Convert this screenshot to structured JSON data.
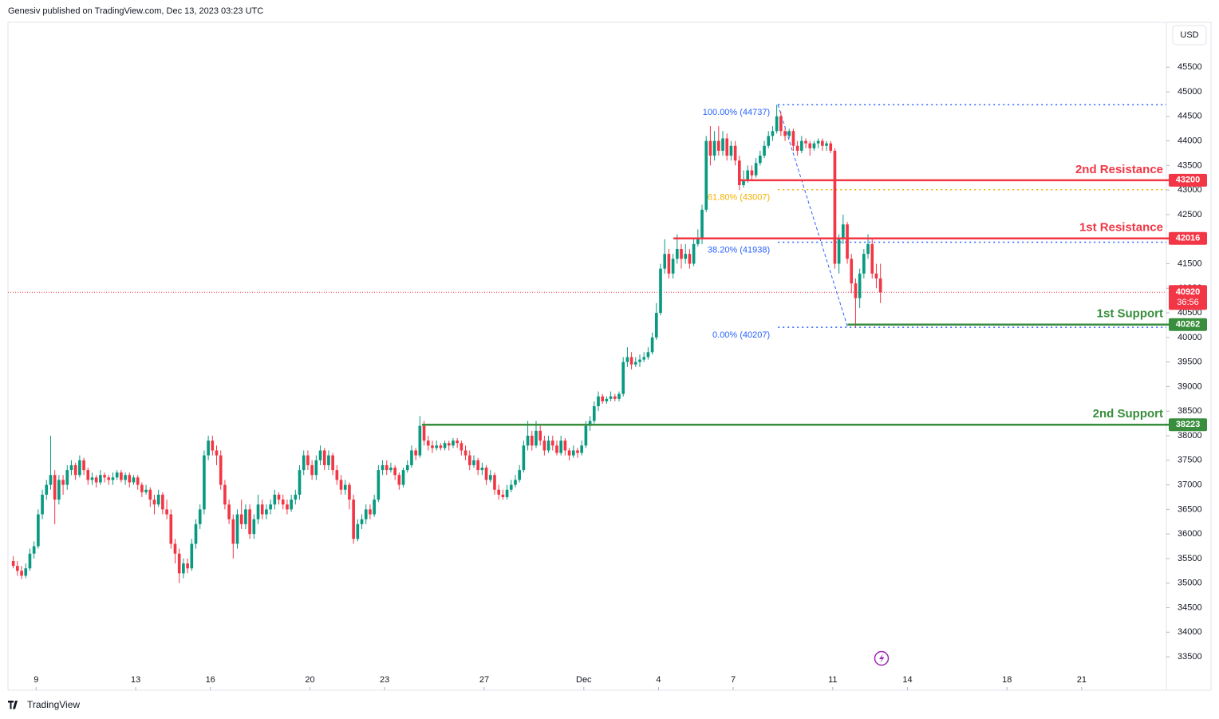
{
  "chart_data": {
    "type": "candlestick",
    "header": "Genesiv published on TradingView.com, Dec 13, 2023 03:23 UTC",
    "currency": "USD",
    "footer": "TradingView",
    "up_color": "#089981",
    "down_color": "#f23645",
    "xlim": [
      -0.13,
      46.4
    ],
    "xticks": [
      {
        "value": 1,
        "label": "9"
      },
      {
        "value": 5,
        "label": "13"
      },
      {
        "value": 8,
        "label": "16"
      },
      {
        "value": 12,
        "label": "20"
      },
      {
        "value": 15,
        "label": "23"
      },
      {
        "value": 19,
        "label": "27"
      },
      {
        "value": 23,
        "label": "Dec"
      },
      {
        "value": 26,
        "label": "4"
      },
      {
        "value": 29,
        "label": "7"
      },
      {
        "value": 33,
        "label": "11"
      },
      {
        "value": 36,
        "label": "14"
      },
      {
        "value": 40,
        "label": "18"
      },
      {
        "value": 43,
        "label": "21"
      }
    ],
    "ylim": [
      32819,
      46413
    ],
    "yticks": [
      33500,
      34000,
      34500,
      35000,
      35500,
      36000,
      36500,
      37000,
      37500,
      38000,
      38500,
      39000,
      39500,
      40000,
      40500,
      41000,
      41500,
      42000,
      42500,
      43000,
      43500,
      44000,
      44500,
      45000,
      45500
    ],
    "candles": [
      [
        35450,
        35550,
        35300,
        35350
      ],
      [
        35350,
        35450,
        35150,
        35250
      ],
      [
        35250,
        35350,
        35080,
        35150
      ],
      [
        35150,
        35400,
        35100,
        35300
      ],
      [
        35300,
        35700,
        35250,
        35600
      ],
      [
        35600,
        35850,
        35500,
        35750
      ],
      [
        35750,
        36500,
        35700,
        36400
      ],
      [
        36400,
        36900,
        36300,
        36800
      ],
      [
        36800,
        37100,
        36700,
        37000
      ],
      [
        37000,
        38000,
        36900,
        37200
      ],
      [
        37200,
        37300,
        36200,
        36700
      ],
      [
        36700,
        37200,
        36600,
        37100
      ],
      [
        37100,
        37200,
        36800,
        37000
      ],
      [
        37000,
        37400,
        36900,
        37300
      ],
      [
        37300,
        37500,
        37200,
        37400
      ],
      [
        37400,
        37450,
        37100,
        37200
      ],
      [
        37200,
        37600,
        37150,
        37500
      ],
      [
        37500,
        37550,
        37200,
        37300
      ],
      [
        37300,
        37350,
        37000,
        37100
      ],
      [
        37100,
        37250,
        37000,
        37150
      ],
      [
        37150,
        37200,
        36950,
        37050
      ],
      [
        37050,
        37300,
        37000,
        37200
      ],
      [
        37200,
        37250,
        37050,
        37150
      ],
      [
        37150,
        37200,
        37000,
        37100
      ],
      [
        37100,
        37250,
        37000,
        37150
      ],
      [
        37150,
        37300,
        37100,
        37250
      ],
      [
        37250,
        37300,
        37050,
        37100
      ],
      [
        37100,
        37250,
        37000,
        37200
      ],
      [
        37200,
        37250,
        36950,
        37050
      ],
      [
        37050,
        37200,
        37000,
        37150
      ],
      [
        37150,
        37200,
        36900,
        37000
      ],
      [
        37000,
        37050,
        36750,
        36850
      ],
      [
        36850,
        37000,
        36800,
        36900
      ],
      [
        36900,
        36950,
        36550,
        36700
      ],
      [
        36700,
        36800,
        36400,
        36600
      ],
      [
        36600,
        36900,
        36550,
        36800
      ],
      [
        36800,
        36850,
        36400,
        36500
      ],
      [
        36500,
        36700,
        36300,
        36400
      ],
      [
        36400,
        36500,
        35700,
        35800
      ],
      [
        35800,
        35900,
        35400,
        35600
      ],
      [
        35600,
        35700,
        35000,
        35200
      ],
      [
        35200,
        35500,
        35100,
        35400
      ],
      [
        35400,
        35500,
        35200,
        35300
      ],
      [
        35300,
        35900,
        35250,
        35800
      ],
      [
        35800,
        36300,
        35700,
        36200
      ],
      [
        36200,
        36600,
        36100,
        36500
      ],
      [
        36500,
        37700,
        36400,
        37600
      ],
      [
        37600,
        38000,
        37500,
        37900
      ],
      [
        37900,
        38000,
        37600,
        37700
      ],
      [
        37700,
        37800,
        37400,
        37600
      ],
      [
        37600,
        37700,
        36900,
        37000
      ],
      [
        37000,
        37100,
        36500,
        36600
      ],
      [
        36600,
        36700,
        36200,
        36300
      ],
      [
        36300,
        36400,
        35500,
        35800
      ],
      [
        35800,
        36500,
        35700,
        36400
      ],
      [
        36400,
        36700,
        36100,
        36200
      ],
      [
        36200,
        36600,
        36100,
        36500
      ],
      [
        36500,
        36600,
        35900,
        36000
      ],
      [
        36000,
        36400,
        35900,
        36300
      ],
      [
        36300,
        36800,
        36200,
        36600
      ],
      [
        36600,
        36700,
        36300,
        36400
      ],
      [
        36400,
        36600,
        36300,
        36500
      ],
      [
        36500,
        36700,
        36400,
        36600
      ],
      [
        36600,
        36900,
        36500,
        36800
      ],
      [
        36800,
        36850,
        36600,
        36700
      ],
      [
        36700,
        36800,
        36500,
        36600
      ],
      [
        36600,
        36700,
        36400,
        36500
      ],
      [
        36500,
        36800,
        36450,
        36700
      ],
      [
        36700,
        36900,
        36600,
        36800
      ],
      [
        36800,
        37400,
        36700,
        37300
      ],
      [
        37300,
        37700,
        37200,
        37600
      ],
      [
        37600,
        37700,
        37300,
        37400
      ],
      [
        37400,
        37500,
        37100,
        37200
      ],
      [
        37200,
        37600,
        37100,
        37500
      ],
      [
        37500,
        37800,
        37400,
        37700
      ],
      [
        37700,
        37750,
        37300,
        37400
      ],
      [
        37400,
        37700,
        37300,
        37600
      ],
      [
        37600,
        37650,
        37200,
        37300
      ],
      [
        37300,
        37400,
        37000,
        37100
      ],
      [
        37100,
        37200,
        36800,
        36900
      ],
      [
        36900,
        37100,
        36800,
        37000
      ],
      [
        37000,
        37050,
        36500,
        36700
      ],
      [
        36700,
        36800,
        35800,
        35900
      ],
      [
        35900,
        36300,
        35850,
        36200
      ],
      [
        36200,
        36400,
        36100,
        36300
      ],
      [
        36300,
        36600,
        36200,
        36500
      ],
      [
        36500,
        36600,
        36300,
        36400
      ],
      [
        36400,
        36800,
        36350,
        36700
      ],
      [
        36700,
        37400,
        36650,
        37300
      ],
      [
        37300,
        37500,
        37200,
        37400
      ],
      [
        37400,
        37500,
        37200,
        37300
      ],
      [
        37300,
        37450,
        37250,
        37350
      ],
      [
        37350,
        37400,
        37100,
        37200
      ],
      [
        37200,
        37250,
        36900,
        37000
      ],
      [
        37000,
        37350,
        36950,
        37300
      ],
      [
        37300,
        37500,
        37250,
        37400
      ],
      [
        37400,
        37800,
        37350,
        37700
      ],
      [
        37700,
        37750,
        37500,
        37600
      ],
      [
        37600,
        38400,
        37550,
        38200
      ],
      [
        38200,
        38300,
        37800,
        37900
      ],
      [
        37900,
        38000,
        37700,
        37800
      ],
      [
        37800,
        37900,
        37650,
        37750
      ],
      [
        37750,
        37900,
        37700,
        37800
      ],
      [
        37800,
        37850,
        37700,
        37750
      ],
      [
        37750,
        37900,
        37700,
        37850
      ],
      [
        37850,
        37900,
        37700,
        37800
      ],
      [
        37800,
        37950,
        37750,
        37900
      ],
      [
        37900,
        37950,
        37750,
        37850
      ],
      [
        37850,
        37900,
        37600,
        37700
      ],
      [
        37700,
        37800,
        37500,
        37600
      ],
      [
        37600,
        37700,
        37300,
        37400
      ],
      [
        37400,
        37600,
        37350,
        37500
      ],
      [
        37500,
        37550,
        37200,
        37300
      ],
      [
        37300,
        37450,
        37200,
        37350
      ],
      [
        37350,
        37400,
        37000,
        37100
      ],
      [
        37100,
        37300,
        37050,
        37200
      ],
      [
        37200,
        37250,
        36800,
        36900
      ],
      [
        36900,
        37000,
        36700,
        36800
      ],
      [
        36800,
        36900,
        36700,
        36750
      ],
      [
        36750,
        37000,
        36700,
        36900
      ],
      [
        36900,
        37100,
        36850,
        37000
      ],
      [
        37000,
        37200,
        36950,
        37100
      ],
      [
        37100,
        37400,
        37050,
        37300
      ],
      [
        37300,
        37900,
        37250,
        37800
      ],
      [
        37800,
        38300,
        37700,
        38000
      ],
      [
        38000,
        38100,
        37700,
        37800
      ],
      [
        37800,
        38300,
        37750,
        38100
      ],
      [
        38100,
        38200,
        37800,
        37900
      ],
      [
        37900,
        38000,
        37600,
        37700
      ],
      [
        37700,
        38000,
        37650,
        37900
      ],
      [
        37900,
        38000,
        37700,
        37800
      ],
      [
        37800,
        37900,
        37600,
        37650
      ],
      [
        37650,
        38000,
        37600,
        37900
      ],
      [
        37900,
        37950,
        37600,
        37700
      ],
      [
        37700,
        37750,
        37500,
        37600
      ],
      [
        37600,
        37800,
        37550,
        37700
      ],
      [
        37700,
        37750,
        37550,
        37650
      ],
      [
        37650,
        37900,
        37600,
        37800
      ],
      [
        37800,
        38300,
        37750,
        38200
      ],
      [
        38200,
        38400,
        38100,
        38300
      ],
      [
        38300,
        38700,
        38250,
        38600
      ],
      [
        38600,
        38900,
        38500,
        38800
      ],
      [
        38800,
        38850,
        38650,
        38700
      ],
      [
        38700,
        38800,
        38650,
        38750
      ],
      [
        38750,
        38900,
        38700,
        38800
      ],
      [
        38800,
        38850,
        38700,
        38750
      ],
      [
        38750,
        38900,
        38700,
        38850
      ],
      [
        38850,
        39600,
        38800,
        39500
      ],
      [
        39500,
        39800,
        39400,
        39600
      ],
      [
        39600,
        39700,
        39350,
        39450
      ],
      [
        39450,
        39600,
        39400,
        39500
      ],
      [
        39500,
        39650,
        39400,
        39550
      ],
      [
        39550,
        39700,
        39500,
        39600
      ],
      [
        39600,
        39800,
        39550,
        39700
      ],
      [
        39700,
        40100,
        39650,
        40000
      ],
      [
        40000,
        40700,
        39950,
        40500
      ],
      [
        40500,
        41500,
        40450,
        41400
      ],
      [
        41400,
        42000,
        41300,
        41700
      ],
      [
        41700,
        41800,
        41200,
        41300
      ],
      [
        41300,
        41700,
        41200,
        41600
      ],
      [
        41600,
        42100,
        41500,
        41800
      ],
      [
        41800,
        41900,
        41400,
        41600
      ],
      [
        41600,
        41900,
        41500,
        41700
      ],
      [
        41700,
        41800,
        41400,
        41500
      ],
      [
        41500,
        42000,
        41450,
        41900
      ],
      [
        41900,
        42200,
        41850,
        42000
      ],
      [
        42000,
        42700,
        41900,
        42600
      ],
      [
        42600,
        44100,
        42550,
        44000
      ],
      [
        44000,
        44300,
        43500,
        43700
      ],
      [
        43700,
        44200,
        43600,
        44000
      ],
      [
        44000,
        44300,
        43700,
        43800
      ],
      [
        43800,
        44200,
        43700,
        44050
      ],
      [
        44050,
        44150,
        43600,
        43700
      ],
      [
        43700,
        44000,
        43600,
        43900
      ],
      [
        43900,
        44000,
        43500,
        43600
      ],
      [
        43600,
        43700,
        43000,
        43100
      ],
      [
        43100,
        43400,
        43050,
        43200
      ],
      [
        43200,
        43500,
        43150,
        43400
      ],
      [
        43400,
        43500,
        43200,
        43300
      ],
      [
        43300,
        43650,
        43250,
        43550
      ],
      [
        43550,
        43800,
        43500,
        43700
      ],
      [
        43700,
        44000,
        43650,
        43900
      ],
      [
        43900,
        44200,
        43850,
        44100
      ],
      [
        44100,
        44300,
        44000,
        44200
      ],
      [
        44200,
        44737,
        44150,
        44500
      ],
      [
        44500,
        44600,
        44100,
        44200
      ],
      [
        44200,
        44250,
        44000,
        44100
      ],
      [
        44100,
        44250,
        44050,
        44200
      ],
      [
        44200,
        44250,
        43800,
        43900
      ],
      [
        43900,
        44000,
        43700,
        43800
      ],
      [
        43800,
        44100,
        43750,
        44000
      ],
      [
        44000,
        44050,
        43850,
        43950
      ],
      [
        43950,
        44000,
        43700,
        43850
      ],
      [
        43850,
        44000,
        43800,
        43950
      ],
      [
        43950,
        44050,
        43850,
        44000
      ],
      [
        44000,
        44050,
        43800,
        43900
      ],
      [
        43900,
        44000,
        43800,
        43950
      ],
      [
        43950,
        44000,
        43750,
        43800
      ],
      [
        43800,
        43850,
        41400,
        41500
      ],
      [
        41500,
        42100,
        41300,
        42000
      ],
      [
        42000,
        42500,
        41900,
        42300
      ],
      [
        42300,
        42350,
        41500,
        41600
      ],
      [
        41600,
        41700,
        40900,
        41100
      ],
      [
        41100,
        41200,
        40207,
        40800
      ],
      [
        40800,
        41400,
        40600,
        41300
      ],
      [
        41300,
        41800,
        41200,
        41700
      ],
      [
        41700,
        42100,
        41600,
        41900
      ],
      [
        41900,
        42000,
        41200,
        41300
      ],
      [
        41300,
        41500,
        41000,
        41200
      ],
      [
        41200,
        41500,
        40700,
        40920
      ]
    ],
    "levels": [
      {
        "name": "2nd Resistance",
        "value": 43200,
        "from": 29.3,
        "color": "#f23645"
      },
      {
        "name": "1st Resistance",
        "value": 42016,
        "from": 26.6,
        "color": "#f23645"
      },
      {
        "name": "1st Support",
        "value": 40262,
        "from": 33.6,
        "color": "#388e3c"
      },
      {
        "name": "2nd Support",
        "value": 38223,
        "from": 16.5,
        "color": "#388e3c"
      }
    ],
    "fib": {
      "from": 30.8,
      "to": 33.6,
      "levels": [
        {
          "label": "100.00% (44737)",
          "value": 44737,
          "color": "#2962ff"
        },
        {
          "label": "61.80% (43007)",
          "value": 43007,
          "color": "#f5b000"
        },
        {
          "label": "38.20% (41938)",
          "value": 41938,
          "color": "#2962ff"
        },
        {
          "label": "0.00% (40207)",
          "value": 40207,
          "color": "#2962ff"
        }
      ]
    },
    "last": {
      "value": 40920,
      "countdown": "36:56",
      "color": "#f23645"
    }
  }
}
